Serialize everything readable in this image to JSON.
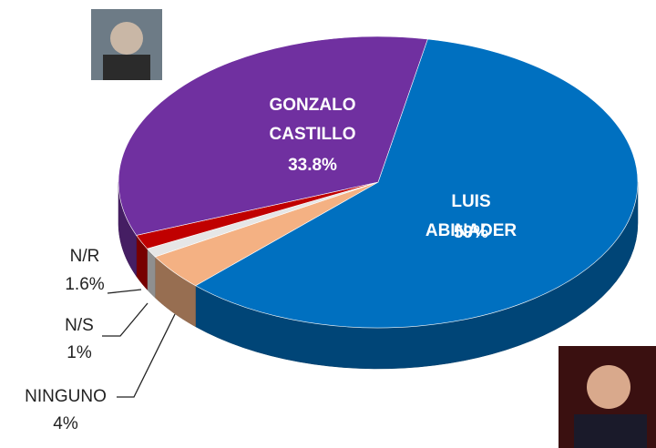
{
  "chart_data": {
    "type": "pie",
    "categories": [
      "LUIS ABINADER",
      "NINGUNO",
      "N/S",
      "N/R",
      "GONZALO CASTILLO"
    ],
    "values": [
      59,
      4,
      1,
      1.6,
      33.8
    ],
    "value_labels": [
      "59%",
      "4%",
      "1%",
      "1.6%",
      "33.8%"
    ],
    "colors": [
      "#0070c0",
      "#f4b183",
      "#e6e6e6",
      "#c00000",
      "#7030a0"
    ]
  }
}
